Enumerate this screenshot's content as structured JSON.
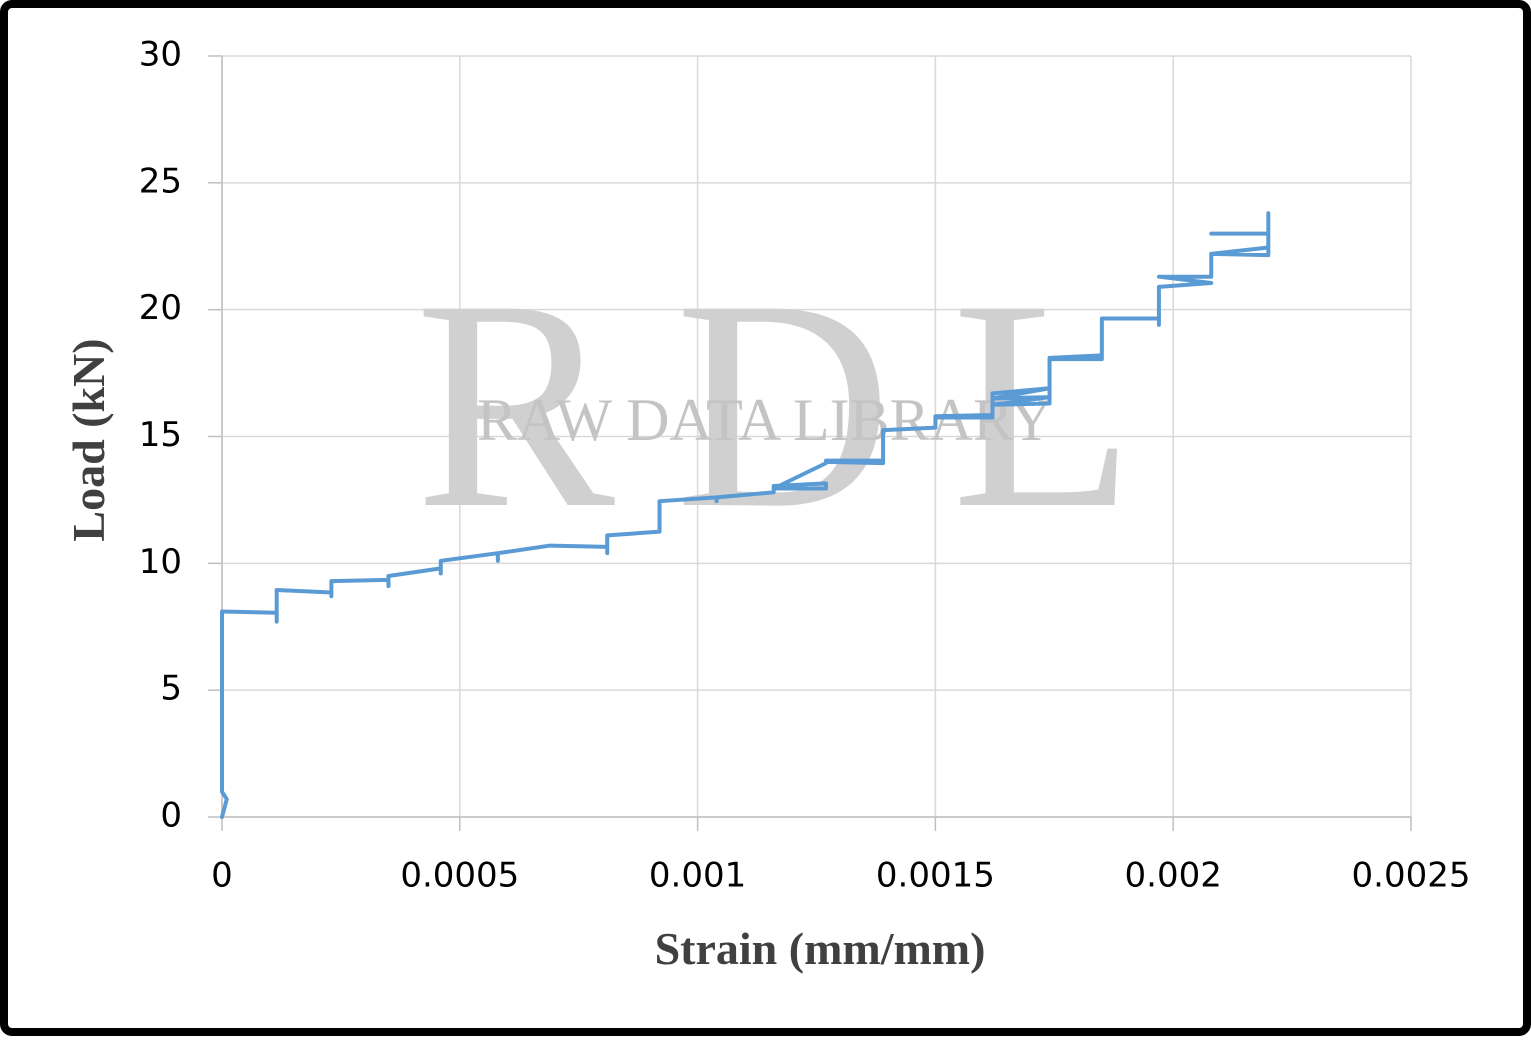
{
  "chart_data": {
    "type": "line",
    "xlabel": "Strain (mm/mm)",
    "ylabel": "Load (kN)",
    "watermark": "RDL",
    "watermark_text": "RAW DATA LIBRARY",
    "xlim": [
      0,
      0.0025
    ],
    "xticks": [
      0,
      0.0005,
      0.001,
      0.0015,
      0.002,
      0.0025
    ],
    "ylim": [
      0,
      30
    ],
    "yticks": [
      0,
      5,
      10,
      15,
      20,
      25,
      30
    ],
    "grid": true,
    "series": [
      {
        "color": "#5b9bd5",
        "x": [
          0,
          1e-05,
          0,
          0,
          0.000115,
          0.000115,
          0.000115,
          0.00023,
          0.00023,
          0.00023,
          0.00035,
          0.00035,
          0.00035,
          0.00046,
          0.00046,
          0.00046,
          0.00058,
          0.00058,
          0.00058,
          0.00069,
          0.00081,
          0.00081,
          0.00081,
          0.00092,
          0.00092,
          0.00104,
          0.00104,
          0.00104,
          0.00116,
          0.00116,
          0.00127,
          0.00127,
          0.00116,
          0.00127,
          0.00127,
          0.00139,
          0.00127,
          0.00139,
          0.00139,
          0.0015,
          0.0015,
          0.00162,
          0.0015,
          0.00162,
          0.00162,
          0.00174,
          0.00162,
          0.00174,
          0.00162,
          0.00174,
          0.00174,
          0.00185,
          0.00174,
          0.00185,
          0.00185,
          0.00197,
          0.00197,
          0.00197,
          0.00208,
          0.00197,
          0.00208,
          0.00208,
          0.0022,
          0.00208,
          0.0022,
          0.0022,
          0.0022,
          0.00208
        ],
        "values": [
          0,
          0.7,
          1,
          8.1,
          8.05,
          7.7,
          8.95,
          8.85,
          8.7,
          9.3,
          9.35,
          9.1,
          9.5,
          9.8,
          9.6,
          10.1,
          10.4,
          10.1,
          10.4,
          10.7,
          10.65,
          10.4,
          11.1,
          11.25,
          12.45,
          12.6,
          12.45,
          12.6,
          12.8,
          13.05,
          13.15,
          12.95,
          12.95,
          13.95,
          14.05,
          14.05,
          14.0,
          13.95,
          15.25,
          15.35,
          15.8,
          15.85,
          15.75,
          15.75,
          16.7,
          16.9,
          16.5,
          16.55,
          16.25,
          16.3,
          18.1,
          18.2,
          18.05,
          18.05,
          19.65,
          19.65,
          19.4,
          20.9,
          21.05,
          21.3,
          21.3,
          22.2,
          22.45,
          22.2,
          22.15,
          23.8,
          23.0,
          23.0
        ]
      }
    ]
  }
}
